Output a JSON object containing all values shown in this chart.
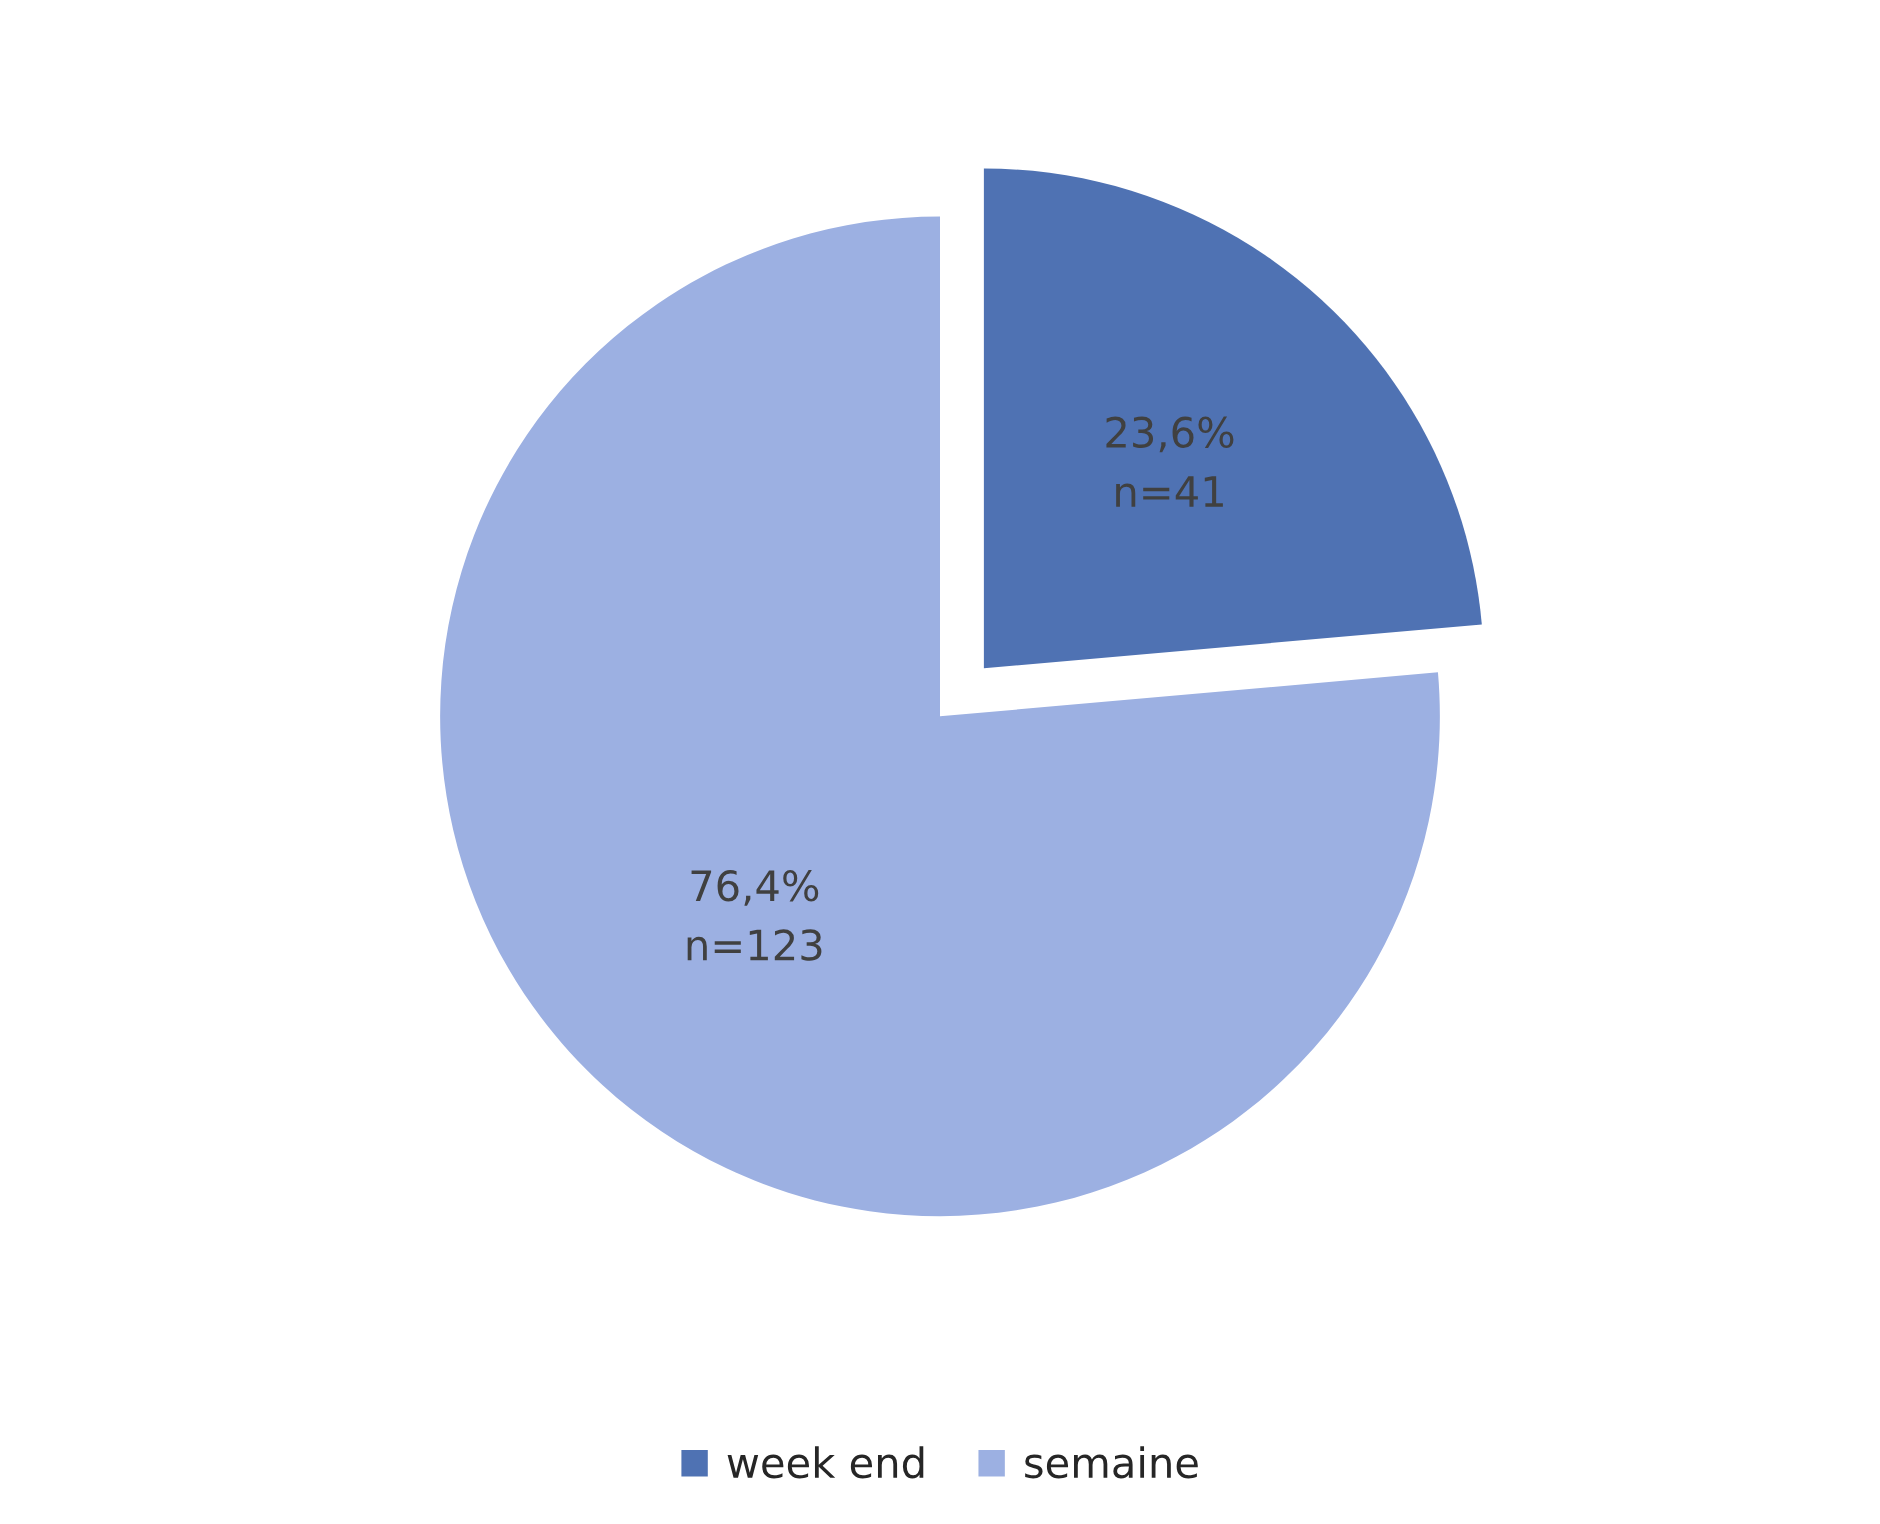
{
  "chart_data": {
    "type": "pie",
    "categories": [
      "week end",
      "semaine"
    ],
    "values": [
      23.6,
      76.4
    ],
    "colors": [
      "#4f72b3",
      "#9cb0e2"
    ],
    "value_labels": [
      "23,6%\nn=41",
      "76,4%\nn=123"
    ],
    "legend": "bottom"
  }
}
